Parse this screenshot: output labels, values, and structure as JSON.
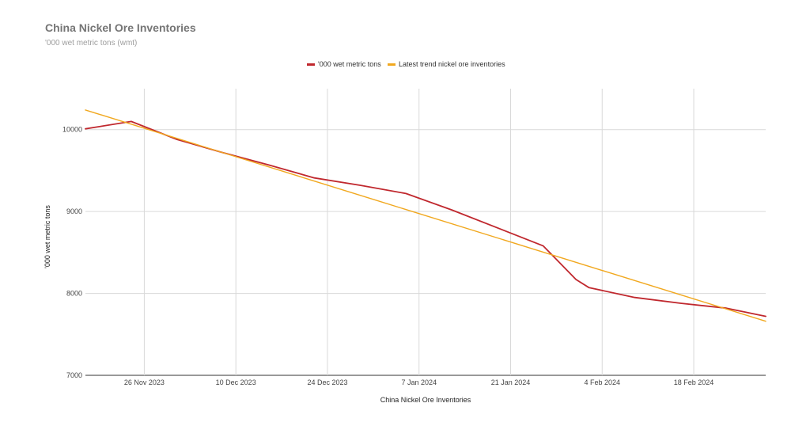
{
  "chart_data": {
    "type": "line",
    "title": "China Nickel Ore Inventories",
    "subtitle": "'000 wet metric tons (wmt)",
    "xlabel": "China Nickel Ore Inventories",
    "ylabel": "'000 wet metric tons",
    "ylim": [
      7000,
      10500
    ],
    "xlim": [
      "2023-11-17",
      "2024-02-29"
    ],
    "y_ticks": [
      7000,
      8000,
      9000,
      10000
    ],
    "x_ticks": [
      {
        "date": "2023-11-26",
        "label": "26 Nov 2023"
      },
      {
        "date": "2023-12-10",
        "label": "10 Dec 2023"
      },
      {
        "date": "2023-12-24",
        "label": "24 Dec 2023"
      },
      {
        "date": "2024-01-07",
        "label": "7 Jan 2024"
      },
      {
        "date": "2024-01-21",
        "label": "21 Jan 2024"
      },
      {
        "date": "2024-02-04",
        "label": "4 Feb 2024"
      },
      {
        "date": "2024-02-18",
        "label": "18 Feb 2024"
      }
    ],
    "grid": true,
    "legend_position": "top-center",
    "series": [
      {
        "name": "'000 wet metric tons",
        "color": "#c0282e",
        "points": [
          {
            "x": "2023-11-17",
            "y": 10010
          },
          {
            "x": "2023-11-24",
            "y": 10100
          },
          {
            "x": "2023-12-01",
            "y": 9880
          },
          {
            "x": "2023-12-08",
            "y": 9720
          },
          {
            "x": "2023-12-15",
            "y": 9570
          },
          {
            "x": "2023-12-22",
            "y": 9410
          },
          {
            "x": "2023-12-29",
            "y": 9320
          },
          {
            "x": "2024-01-05",
            "y": 9220
          },
          {
            "x": "2024-01-12",
            "y": 9020
          },
          {
            "x": "2024-01-19",
            "y": 8800
          },
          {
            "x": "2024-01-26",
            "y": 8580
          },
          {
            "x": "2024-01-31",
            "y": 8170
          },
          {
            "x": "2024-02-02",
            "y": 8070
          },
          {
            "x": "2024-02-09",
            "y": 7950
          },
          {
            "x": "2024-02-16",
            "y": 7880
          },
          {
            "x": "2024-02-23",
            "y": 7820
          },
          {
            "x": "2024-02-29",
            "y": 7720
          }
        ]
      },
      {
        "name": "Latest trend nickel ore inventories",
        "color": "#f1a81f",
        "points": [
          {
            "x": "2023-11-17",
            "y": 10240
          },
          {
            "x": "2024-02-29",
            "y": 7660
          }
        ]
      }
    ]
  }
}
